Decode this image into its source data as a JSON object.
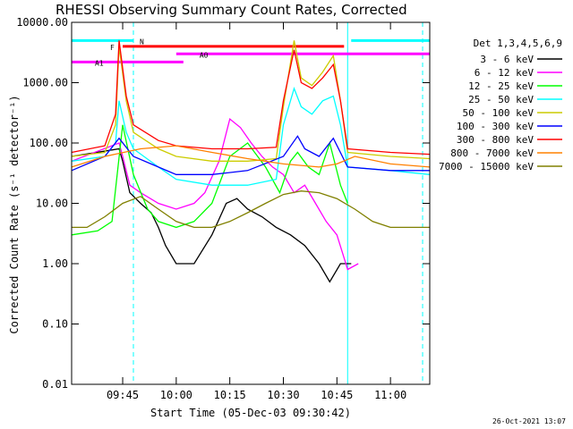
{
  "chart_data": {
    "type": "line",
    "title": "RHESSI Observing Summary Count Rates, Corrected",
    "ylabel": "Corrected Count Rate (s⁻¹ detector⁻¹)",
    "xlabel": "Start Time (05-Dec-03 09:30:42)",
    "yscale": "log",
    "ylim": [
      0.01,
      10000
    ],
    "xlim": [
      "09:30:42",
      "11:11:00"
    ],
    "grid": false,
    "y_ticks": [
      "10000.00",
      "1000.00",
      "100.00",
      "10.00",
      "1.00",
      "0.10",
      "0.01"
    ],
    "x_ticks": [
      "09:45",
      "10:00",
      "10:15",
      "10:30",
      "10:45",
      "11:00"
    ],
    "legend": {
      "title": "Det 1,3,4,5,6,9",
      "placement": "top-right",
      "entries": [
        {
          "label": "3 - 6 keV",
          "color": "#000000"
        },
        {
          "label": "6 - 12 keV",
          "color": "#ff00ff"
        },
        {
          "label": "12 - 25 keV",
          "color": "#00ff00"
        },
        {
          "label": "25 - 50 keV",
          "color": "#00ffff"
        },
        {
          "label": "50 - 100 keV",
          "color": "#cccc00"
        },
        {
          "label": "100 - 300 keV",
          "color": "#0000ff"
        },
        {
          "label": "300 - 800 keV",
          "color": "#ff0000"
        },
        {
          "label": "800 - 7000 keV",
          "color": "#ff8000"
        },
        {
          "label": "7000 - 15000 keV",
          "color": "#808000"
        }
      ]
    },
    "series": [
      {
        "name": "3 - 6 keV",
        "color": "#000000",
        "x": [
          "09:30:42",
          "09:44",
          "09:45",
          "09:47",
          "09:50",
          "09:53",
          "09:55",
          "09:57",
          "10:00",
          "10:05",
          "10:10",
          "10:14",
          "10:17",
          "10:20",
          "10:24",
          "10:28",
          "10:32",
          "10:36",
          "10:40",
          "10:43",
          "10:46",
          "10:49"
        ],
        "values": [
          60,
          80,
          50,
          15,
          10,
          7,
          4,
          2,
          1,
          1,
          3,
          10,
          12,
          8,
          6,
          4,
          3,
          2,
          1,
          0.5,
          1,
          1
        ]
      },
      {
        "name": "6 - 12 keV",
        "color": "#ff00ff",
        "x": [
          "09:30:42",
          "09:44",
          "09:45",
          "09:47",
          "09:50",
          "09:55",
          "10:00",
          "10:05",
          "10:08",
          "10:12",
          "10:15",
          "10:18",
          "10:21",
          "10:24",
          "10:27",
          "10:30",
          "10:33",
          "10:36",
          "10:39",
          "10:42",
          "10:45",
          "10:48",
          "10:51"
        ],
        "values": [
          50,
          100,
          60,
          20,
          15,
          10,
          8,
          10,
          15,
          50,
          250,
          180,
          100,
          60,
          40,
          30,
          15,
          20,
          10,
          5,
          3,
          0.8,
          1
        ]
      },
      {
        "name": "12 - 25 keV",
        "color": "#00ff00",
        "x": [
          "09:30:42",
          "09:38",
          "09:42",
          "09:45",
          "09:48",
          "09:52",
          "09:55",
          "10:00",
          "10:05",
          "10:10",
          "10:15",
          "10:20",
          "10:25",
          "10:29",
          "10:32",
          "10:34",
          "10:37",
          "10:40",
          "10:43",
          "10:46",
          "10:48"
        ],
        "values": [
          3,
          3.5,
          5,
          200,
          30,
          8,
          5,
          4,
          5,
          10,
          60,
          100,
          40,
          15,
          50,
          70,
          40,
          30,
          100,
          20,
          10
        ]
      },
      {
        "name": "25 - 50 keV",
        "color": "#00ffff",
        "x": [
          "09:30:42",
          "09:40",
          "09:43",
          "09:44",
          "09:46",
          "09:48",
          "09:55",
          "10:00",
          "10:10",
          "10:20",
          "10:28",
          "10:30",
          "10:33",
          "10:35",
          "10:38",
          "10:41",
          "10:44",
          "10:46",
          "10:48",
          "11:00",
          "11:11"
        ],
        "values": [
          50,
          60,
          100,
          500,
          150,
          80,
          40,
          25,
          20,
          20,
          25,
          200,
          800,
          400,
          300,
          500,
          600,
          200,
          40,
          35,
          30
        ]
      },
      {
        "name": "50 - 100 keV",
        "color": "#cccc00",
        "x": [
          "09:30:42",
          "09:40",
          "09:43",
          "09:44",
          "09:46",
          "09:48",
          "09:55",
          "10:00",
          "10:10",
          "10:20",
          "10:28",
          "10:30",
          "10:33",
          "10:35",
          "10:38",
          "10:41",
          "10:44",
          "10:46",
          "10:48",
          "11:00",
          "11:11"
        ],
        "values": [
          60,
          70,
          200,
          4000,
          500,
          150,
          80,
          60,
          50,
          50,
          55,
          400,
          5000,
          1200,
          900,
          1500,
          2800,
          500,
          70,
          60,
          55
        ]
      },
      {
        "name": "100 - 300 keV",
        "color": "#0000ff",
        "x": [
          "09:30:42",
          "09:40",
          "09:44",
          "09:48",
          "09:55",
          "10:00",
          "10:10",
          "10:20",
          "10:30",
          "10:34",
          "10:36",
          "10:40",
          "10:44",
          "10:48",
          "11:00",
          "11:11"
        ],
        "values": [
          35,
          60,
          120,
          60,
          40,
          30,
          30,
          35,
          60,
          130,
          80,
          60,
          120,
          40,
          35,
          35
        ]
      },
      {
        "name": "300 - 800 keV",
        "color": "#ff0000",
        "x": [
          "09:30:42",
          "09:40",
          "09:43",
          "09:44",
          "09:46",
          "09:48",
          "09:55",
          "10:00",
          "10:10",
          "10:20",
          "10:28",
          "10:30",
          "10:33",
          "10:35",
          "10:38",
          "10:41",
          "10:44",
          "10:46",
          "10:48",
          "11:00",
          "11:11"
        ],
        "values": [
          70,
          90,
          300,
          5000,
          600,
          200,
          110,
          90,
          80,
          80,
          85,
          500,
          3500,
          1000,
          800,
          1200,
          2000,
          500,
          80,
          70,
          65
        ]
      },
      {
        "name": "800 - 7000 keV",
        "color": "#ff8000",
        "x": [
          "09:30:42",
          "09:40",
          "09:50",
          "10:00",
          "10:10",
          "10:20",
          "10:30",
          "10:40",
          "10:45",
          "10:50",
          "11:00",
          "11:11"
        ],
        "values": [
          40,
          60,
          80,
          90,
          70,
          55,
          45,
          40,
          45,
          60,
          45,
          40
        ]
      },
      {
        "name": "7000 - 15000 keV",
        "color": "#808000",
        "x": [
          "09:30:42",
          "09:35",
          "09:40",
          "09:45",
          "09:50",
          "09:55",
          "10:00",
          "10:05",
          "10:10",
          "10:15",
          "10:20",
          "10:25",
          "10:30",
          "10:35",
          "10:40",
          "10:45",
          "10:50",
          "10:55",
          "11:00",
          "11:11"
        ],
        "values": [
          4,
          4,
          6,
          10,
          13,
          8,
          5,
          4,
          4,
          5,
          7,
          10,
          14,
          16,
          15,
          12,
          8,
          5,
          4,
          4
        ]
      }
    ],
    "bars": [
      {
        "label": "N",
        "color": "#00ffff",
        "y": 5000,
        "segments": [
          [
            "09:30:42",
            "09:48"
          ],
          [
            "10:49",
            "11:11"
          ]
        ]
      },
      {
        "label": "F",
        "color": "#ff0000",
        "y": 4000,
        "segments": [
          [
            "09:45",
            "10:47"
          ]
        ]
      },
      {
        "label": "A0",
        "color": "#ff00ff",
        "y": 3000,
        "segments": [
          [
            "10:00",
            "11:11"
          ]
        ]
      },
      {
        "label": "A1",
        "color": "#ff00ff",
        "y": 2200,
        "segments": [
          [
            "09:30:42",
            "10:02"
          ]
        ]
      }
    ],
    "vlines": [
      {
        "x": "09:30:42",
        "color": "#00ffff",
        "style": "solid"
      },
      {
        "x": "09:48",
        "color": "#00ffff",
        "style": "dashed"
      },
      {
        "x": "10:48",
        "color": "#00ffff",
        "style": "solid"
      },
      {
        "x": "11:09",
        "color": "#00ffff",
        "style": "dashed"
      }
    ],
    "date_stamp": "26-Oct-2021 13:07"
  }
}
